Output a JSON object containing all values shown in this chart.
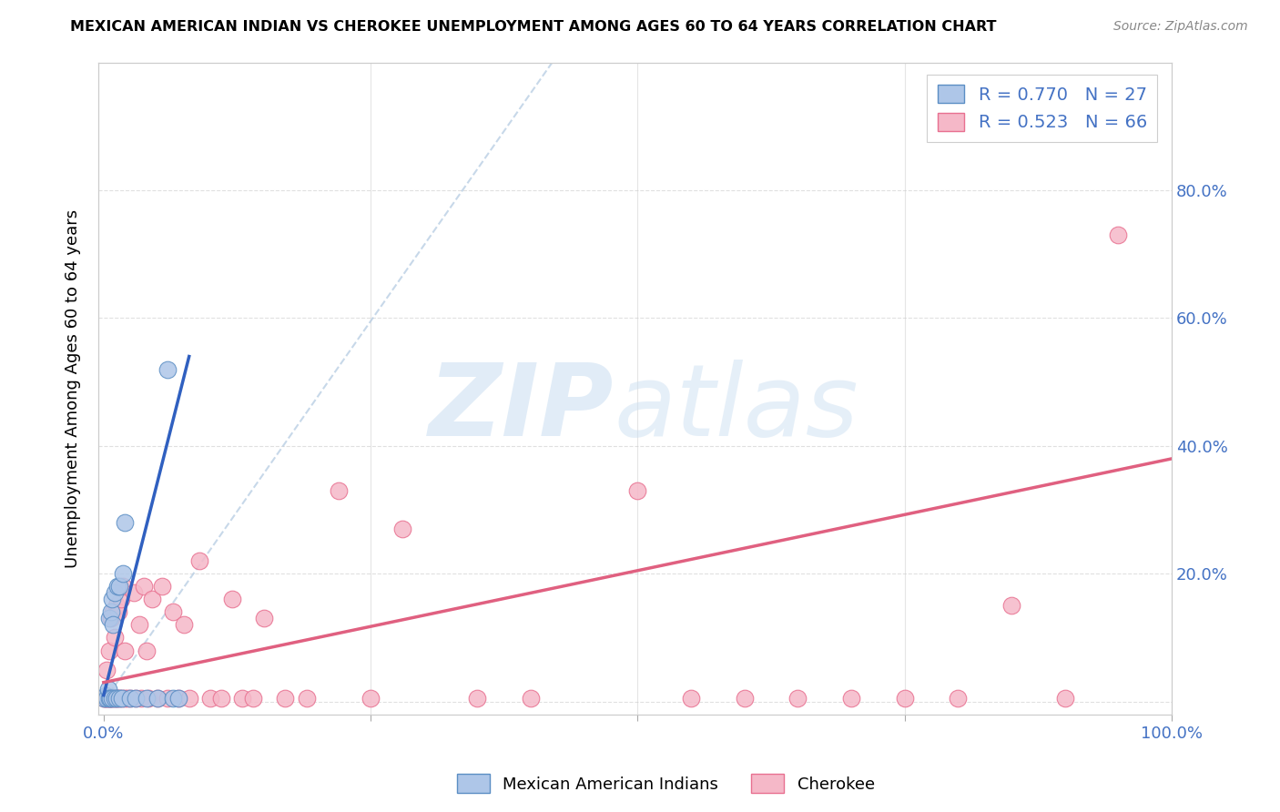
{
  "title": "MEXICAN AMERICAN INDIAN VS CHEROKEE UNEMPLOYMENT AMONG AGES 60 TO 64 YEARS CORRELATION CHART",
  "source": "Source: ZipAtlas.com",
  "ylabel": "Unemployment Among Ages 60 to 64 years",
  "color_blue_fill": "#aec6e8",
  "color_pink_fill": "#f5b8c8",
  "color_blue_edge": "#5b8ec4",
  "color_pink_edge": "#e87090",
  "color_blue_line": "#3060c0",
  "color_pink_line": "#e06080",
  "color_blue_text": "#4472c4",
  "color_dashed": "#b0c8e0",
  "watermark_zip_color": "#cde0f0",
  "watermark_atlas_color": "#d0dff0",
  "mai_x": [
    0.0,
    0.002,
    0.003,
    0.004,
    0.005,
    0.005,
    0.006,
    0.007,
    0.008,
    0.008,
    0.009,
    0.01,
    0.01,
    0.012,
    0.013,
    0.015,
    0.015,
    0.017,
    0.018,
    0.02,
    0.025,
    0.03,
    0.04,
    0.05,
    0.06,
    0.065,
    0.07
  ],
  "mai_y": [
    0.005,
    0.01,
    0.005,
    0.02,
    0.005,
    0.13,
    0.005,
    0.14,
    0.005,
    0.16,
    0.12,
    0.005,
    0.17,
    0.005,
    0.18,
    0.005,
    0.18,
    0.005,
    0.2,
    0.28,
    0.005,
    0.005,
    0.005,
    0.005,
    0.52,
    0.005,
    0.005
  ],
  "cher_x": [
    0.0,
    0.001,
    0.002,
    0.003,
    0.003,
    0.004,
    0.005,
    0.005,
    0.006,
    0.007,
    0.007,
    0.008,
    0.009,
    0.01,
    0.01,
    0.011,
    0.012,
    0.013,
    0.014,
    0.015,
    0.016,
    0.017,
    0.018,
    0.02,
    0.02,
    0.022,
    0.025,
    0.028,
    0.03,
    0.033,
    0.035,
    0.038,
    0.04,
    0.042,
    0.045,
    0.05,
    0.055,
    0.06,
    0.065,
    0.07,
    0.075,
    0.08,
    0.09,
    0.1,
    0.11,
    0.12,
    0.13,
    0.14,
    0.15,
    0.17,
    0.19,
    0.22,
    0.25,
    0.28,
    0.35,
    0.4,
    0.5,
    0.55,
    0.6,
    0.65,
    0.7,
    0.75,
    0.8,
    0.85,
    0.9,
    0.95
  ],
  "cher_y": [
    0.005,
    0.005,
    0.005,
    0.005,
    0.05,
    0.005,
    0.005,
    0.08,
    0.005,
    0.005,
    0.13,
    0.005,
    0.14,
    0.005,
    0.1,
    0.005,
    0.15,
    0.005,
    0.14,
    0.005,
    0.16,
    0.005,
    0.18,
    0.005,
    0.08,
    0.005,
    0.005,
    0.17,
    0.005,
    0.12,
    0.005,
    0.18,
    0.08,
    0.005,
    0.16,
    0.005,
    0.18,
    0.005,
    0.14,
    0.005,
    0.12,
    0.005,
    0.22,
    0.005,
    0.005,
    0.16,
    0.005,
    0.005,
    0.13,
    0.005,
    0.005,
    0.33,
    0.005,
    0.27,
    0.005,
    0.005,
    0.33,
    0.005,
    0.005,
    0.005,
    0.005,
    0.005,
    0.005,
    0.15,
    0.005,
    0.73
  ],
  "mai_line_x": [
    0.0,
    0.08
  ],
  "mai_line_y": [
    0.01,
    0.54
  ],
  "cher_line_x": [
    0.0,
    1.0
  ],
  "cher_line_y": [
    0.03,
    0.38
  ],
  "diag_line_x": [
    0.0,
    0.42
  ],
  "diag_line_y": [
    0.0,
    1.0
  ],
  "xlim": [
    -0.005,
    1.0
  ],
  "ylim": [
    -0.02,
    1.0
  ],
  "xticks": [
    0.0,
    0.25,
    0.5,
    0.75,
    1.0
  ],
  "xtick_labels": [
    "0.0%",
    "",
    "",
    "",
    "100.0%"
  ],
  "yticks_right": [
    0.0,
    0.2,
    0.4,
    0.6,
    0.8
  ],
  "ytick_labels_right": [
    "",
    "20.0%",
    "40.0%",
    "60.0%",
    "80.0%"
  ]
}
